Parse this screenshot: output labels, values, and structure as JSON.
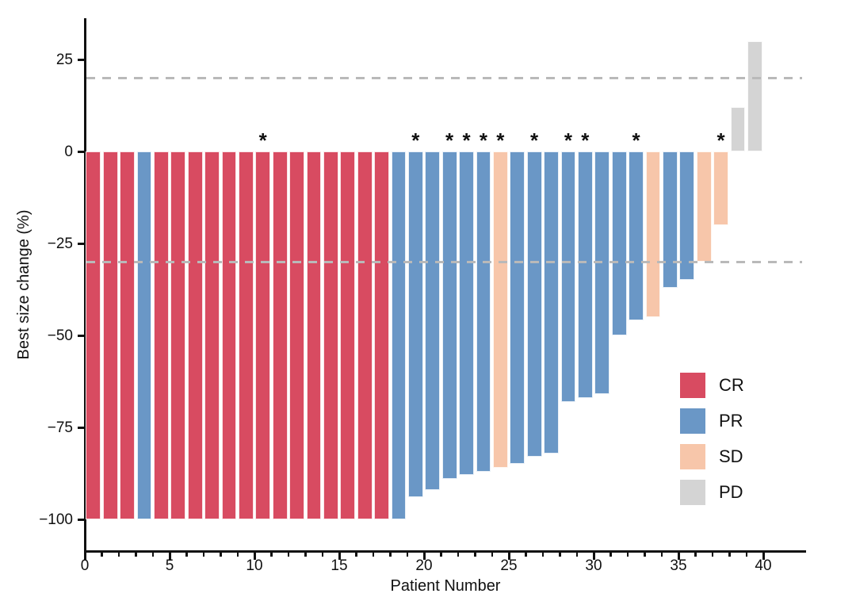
{
  "chart_data": {
    "type": "bar",
    "subtype": "waterfall",
    "title": "",
    "xlabel": "Patient Number",
    "ylabel": "Best size change (%)",
    "xlim": [
      0,
      40
    ],
    "ylim": [
      -100,
      32
    ],
    "grid": false,
    "x_major_ticks": [
      0,
      5,
      10,
      15,
      20,
      25,
      30,
      35,
      40
    ],
    "x_major_tick_labels": [
      "0",
      "5",
      "10",
      "15",
      "20",
      "25",
      "30",
      "35",
      "40"
    ],
    "x_minor_tick_every": 1,
    "y_ticks": [
      25,
      0,
      -25,
      -50,
      -75,
      -100
    ],
    "y_tick_labels": [
      "25",
      "0",
      "−25",
      "−50",
      "−75",
      "−100"
    ],
    "reference_lines": [
      {
        "y": 20,
        "style": "dashed",
        "color": "#b9b9b9"
      },
      {
        "y": -30,
        "style": "dashed",
        "color": "#b9b9b9"
      }
    ],
    "legend": {
      "position": "right-middle",
      "items": [
        {
          "label": "CR",
          "color": "#d84b61"
        },
        {
          "label": "PR",
          "color": "#6a97c6"
        },
        {
          "label": "SD",
          "color": "#f7c6aa"
        },
        {
          "label": "PD",
          "color": "#d4d4d4"
        }
      ]
    },
    "patients": [
      {
        "patient": 1,
        "value": -100,
        "response": "CR",
        "asterisk": false
      },
      {
        "patient": 2,
        "value": -100,
        "response": "CR",
        "asterisk": false
      },
      {
        "patient": 3,
        "value": -100,
        "response": "CR",
        "asterisk": false
      },
      {
        "patient": 4,
        "value": -100,
        "response": "PR",
        "asterisk": false
      },
      {
        "patient": 5,
        "value": -100,
        "response": "CR",
        "asterisk": false
      },
      {
        "patient": 6,
        "value": -100,
        "response": "CR",
        "asterisk": false
      },
      {
        "patient": 7,
        "value": -100,
        "response": "CR",
        "asterisk": false
      },
      {
        "patient": 8,
        "value": -100,
        "response": "CR",
        "asterisk": false
      },
      {
        "patient": 9,
        "value": -100,
        "response": "CR",
        "asterisk": false
      },
      {
        "patient": 10,
        "value": -100,
        "response": "CR",
        "asterisk": false
      },
      {
        "patient": 11,
        "value": -100,
        "response": "CR",
        "asterisk": true
      },
      {
        "patient": 12,
        "value": -100,
        "response": "CR",
        "asterisk": false
      },
      {
        "patient": 13,
        "value": -100,
        "response": "CR",
        "asterisk": false
      },
      {
        "patient": 14,
        "value": -100,
        "response": "CR",
        "asterisk": false
      },
      {
        "patient": 15,
        "value": -100,
        "response": "CR",
        "asterisk": false
      },
      {
        "patient": 16,
        "value": -100,
        "response": "CR",
        "asterisk": false
      },
      {
        "patient": 17,
        "value": -100,
        "response": "CR",
        "asterisk": false
      },
      {
        "patient": 18,
        "value": -100,
        "response": "CR",
        "asterisk": false
      },
      {
        "patient": 19,
        "value": -100,
        "response": "PR",
        "asterisk": false
      },
      {
        "patient": 20,
        "value": -94,
        "response": "PR",
        "asterisk": true
      },
      {
        "patient": 21,
        "value": -92,
        "response": "PR",
        "asterisk": false
      },
      {
        "patient": 22,
        "value": -89,
        "response": "PR",
        "asterisk": true
      },
      {
        "patient": 23,
        "value": -88,
        "response": "PR",
        "asterisk": true
      },
      {
        "patient": 24,
        "value": -87,
        "response": "PR",
        "asterisk": true
      },
      {
        "patient": 25,
        "value": -86,
        "response": "SD",
        "asterisk": true
      },
      {
        "patient": 26,
        "value": -85,
        "response": "PR",
        "asterisk": false
      },
      {
        "patient": 27,
        "value": -83,
        "response": "PR",
        "asterisk": true
      },
      {
        "patient": 28,
        "value": -82,
        "response": "PR",
        "asterisk": false
      },
      {
        "patient": 29,
        "value": -68,
        "response": "PR",
        "asterisk": true
      },
      {
        "patient": 30,
        "value": -67,
        "response": "PR",
        "asterisk": true
      },
      {
        "patient": 31,
        "value": -66,
        "response": "PR",
        "asterisk": false
      },
      {
        "patient": 32,
        "value": -50,
        "response": "PR",
        "asterisk": false
      },
      {
        "patient": 33,
        "value": -46,
        "response": "PR",
        "asterisk": true
      },
      {
        "patient": 34,
        "value": -45,
        "response": "SD",
        "asterisk": false
      },
      {
        "patient": 35,
        "value": -37,
        "response": "PR",
        "asterisk": false
      },
      {
        "patient": 36,
        "value": -35,
        "response": "PR",
        "asterisk": false
      },
      {
        "patient": 37,
        "value": -30,
        "response": "SD",
        "asterisk": false
      },
      {
        "patient": 38,
        "value": -20,
        "response": "SD",
        "asterisk": true
      },
      {
        "patient": 39,
        "value": 12,
        "response": "PD",
        "asterisk": false
      },
      {
        "patient": 40,
        "value": 30,
        "response": "PD",
        "asterisk": false
      }
    ]
  },
  "colors": {
    "CR": "#d84b61",
    "PR": "#6a97c6",
    "SD": "#f7c6aa",
    "PD": "#d4d4d4",
    "axis": "#111111",
    "dashed_line": "#b9b9b9"
  }
}
